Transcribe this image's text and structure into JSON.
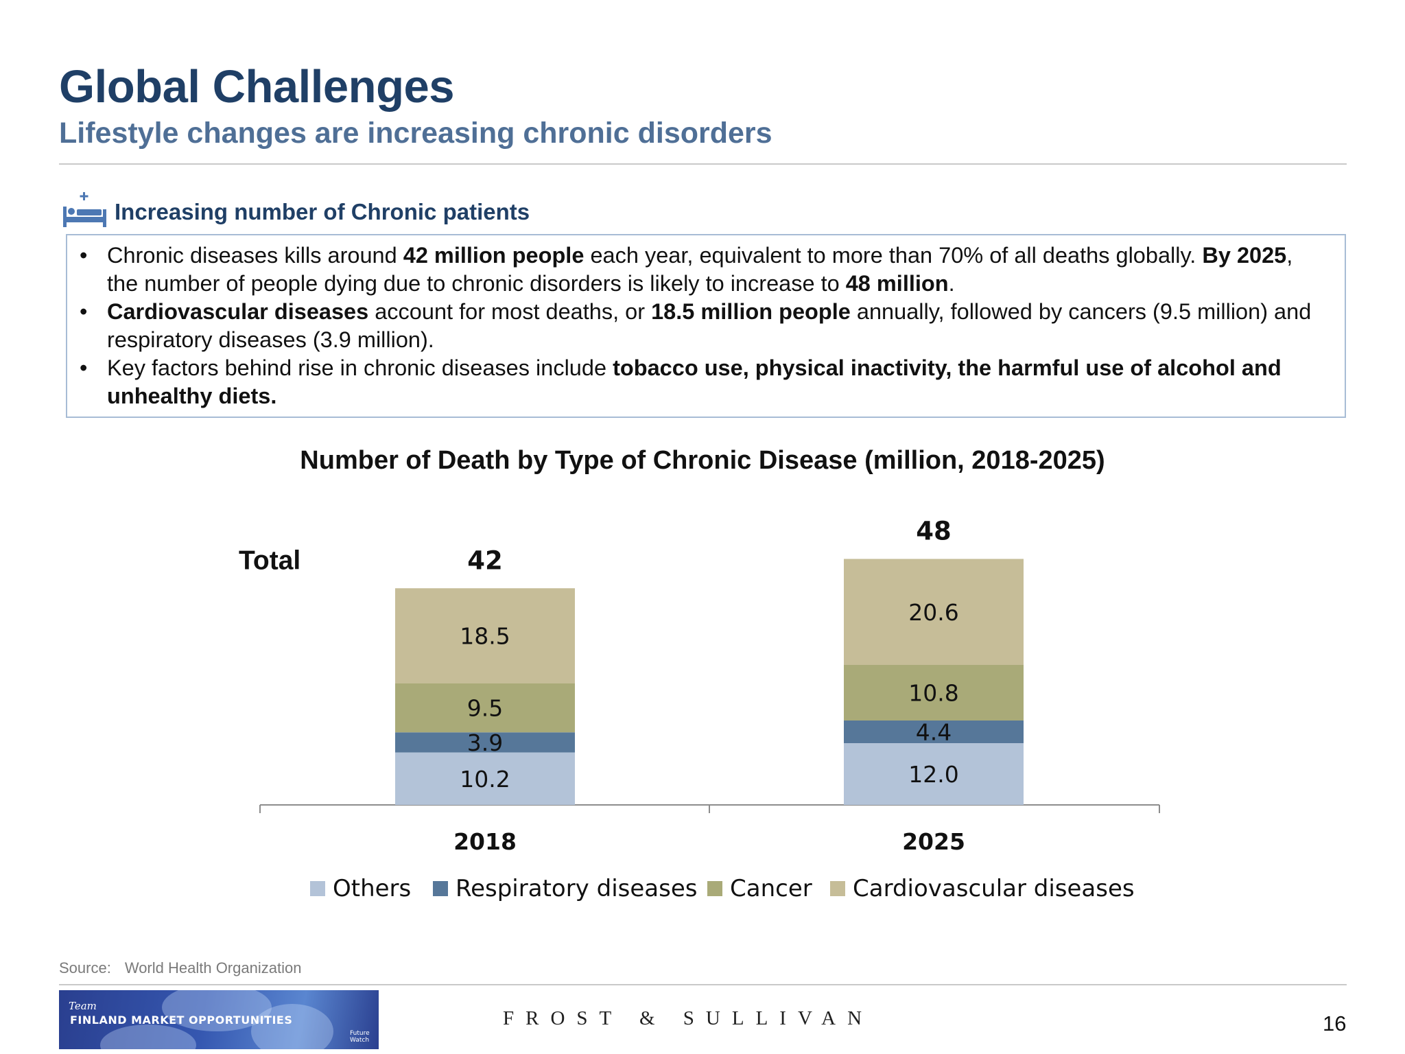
{
  "slide": {
    "title": "Global Challenges",
    "subtitle": "Lifestyle changes are increasing chronic disorders",
    "section_title": "Increasing number of Chronic patients",
    "section_icon": "hospital-bed-icon",
    "bullets": [
      [
        {
          "t": "Chronic diseases kills around ",
          "b": false
        },
        {
          "t": "42 million people",
          "b": true
        },
        {
          "t": " each year, equivalent to more than 70% of all deaths globally. ",
          "b": false
        },
        {
          "t": "By 2025",
          "b": true
        },
        {
          "t": ", the number of people dying due to chronic disorders is likely to increase to ",
          "b": false
        },
        {
          "t": "48 million",
          "b": true
        },
        {
          "t": ".",
          "b": false
        }
      ],
      [
        {
          "t": "Cardiovascular diseases",
          "b": true
        },
        {
          "t": " account for most deaths, or ",
          "b": false
        },
        {
          "t": "18.5 million people",
          "b": true
        },
        {
          "t": " annually, followed by cancers (9.5 million) and  respiratory diseases (3.9 million).",
          "b": false
        }
      ],
      [
        {
          "t": "Key factors behind rise in chronic diseases include ",
          "b": false
        },
        {
          "t": "tobacco use, physical inactivity, the harmful use of alcohol and unhealthy diets.",
          "b": true
        }
      ]
    ]
  },
  "chart_data": {
    "type": "bar",
    "stacked": true,
    "title": "Number of Death by Type of Chronic Disease (million, 2018-2025)",
    "categories": [
      "2018",
      "2025"
    ],
    "series": [
      {
        "name": "Others",
        "values": [
          10.2,
          12.0
        ],
        "labels": [
          "10.2",
          "12.0"
        ],
        "color": "#b3c3d8"
      },
      {
        "name": "Respiratory diseases",
        "values": [
          3.9,
          4.4
        ],
        "labels": [
          "3.9",
          "4.4"
        ],
        "color": "#567799"
      },
      {
        "name": "Cancer",
        "values": [
          9.5,
          10.8
        ],
        "labels": [
          "9.5",
          "10.8"
        ],
        "color": "#a9aa78"
      },
      {
        "name": "Cardiovascular diseases",
        "values": [
          18.5,
          20.6
        ],
        "labels": [
          "18.5",
          "20.6"
        ],
        "color": "#c6bd98"
      }
    ],
    "totals_label": "Total",
    "totals": [
      "42",
      "48"
    ],
    "legend_position": "bottom",
    "grid": false
  },
  "footer": {
    "source_label": "Source:",
    "source_value": "World Health Organization",
    "banner_team": "Team",
    "banner_title": "FINLAND MARKET OPPORTUNITIES",
    "banner_tag": "Future Watch",
    "brand": "FROST & SULLIVAN",
    "page_number": "16"
  }
}
